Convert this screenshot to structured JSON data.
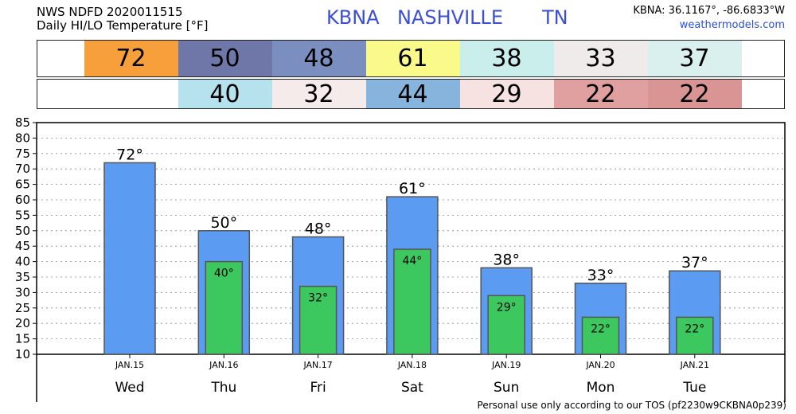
{
  "header": {
    "line1": "NWS NDFD 2020011515",
    "line2": "Daily HI/LO Temperature [°F]",
    "station_id": "KBNA",
    "station_name": "NASHVILLE",
    "state": "TN",
    "coords": "KBNA: 36.1167°, -86.6833°W",
    "site": "weathermodels.com"
  },
  "footer": {
    "tos": "Personal use only according to our TOS (pf2230w9CKBNA0p239)"
  },
  "hi_row": [
    {
      "value": "",
      "color": "#ffffff"
    },
    {
      "value": "72",
      "color": "#f7a03b"
    },
    {
      "value": "50",
      "color": "#6f77a8"
    },
    {
      "value": "48",
      "color": "#7a8fc0"
    },
    {
      "value": "61",
      "color": "#fafa8a"
    },
    {
      "value": "38",
      "color": "#c9eeec"
    },
    {
      "value": "33",
      "color": "#efebeb"
    },
    {
      "value": "37",
      "color": "#d9f0ee"
    }
  ],
  "lo_row": [
    {
      "value": "",
      "color": "#ffffff"
    },
    {
      "value": "",
      "color": "#ffffff"
    },
    {
      "value": "40",
      "color": "#b6e2ee"
    },
    {
      "value": "32",
      "color": "#f6ebeb"
    },
    {
      "value": "44",
      "color": "#86b4dc"
    },
    {
      "value": "29",
      "color": "#f7e2e2"
    },
    {
      "value": "22",
      "color": "#e0a0a0"
    },
    {
      "value": "22",
      "color": "#d99494"
    }
  ],
  "chart_data": {
    "type": "bar",
    "categories": [
      "Wed",
      "Thu",
      "Fri",
      "Sat",
      "Sun",
      "Mon",
      "Tue"
    ],
    "dates": [
      "JAN.15",
      "JAN.16",
      "JAN.17",
      "JAN.18",
      "JAN.19",
      "JAN.20",
      "JAN.21"
    ],
    "series": [
      {
        "name": "",
        "values": [
          72,
          50,
          48,
          61,
          38,
          33,
          37
        ],
        "color": "#5b9cf2"
      },
      {
        "name": "",
        "values": [
          null,
          40,
          32,
          44,
          29,
          22,
          22
        ],
        "color": "#3cc85e"
      }
    ],
    "hi_labels": [
      "72°",
      "50°",
      "48°",
      "61°",
      "38°",
      "33°",
      "37°"
    ],
    "lo_labels": [
      "",
      "40°",
      "32°",
      "44°",
      "29°",
      "22°",
      "22°"
    ],
    "yticks": [
      "10",
      "15",
      "20",
      "25",
      "30",
      "35",
      "40",
      "45",
      "50",
      "55",
      "60",
      "65",
      "70",
      "75",
      "80",
      "85"
    ],
    "ylim": [
      10,
      85
    ],
    "ytick_step": 5,
    "grid": true,
    "title": "",
    "xlabel": "",
    "ylabel": ""
  }
}
